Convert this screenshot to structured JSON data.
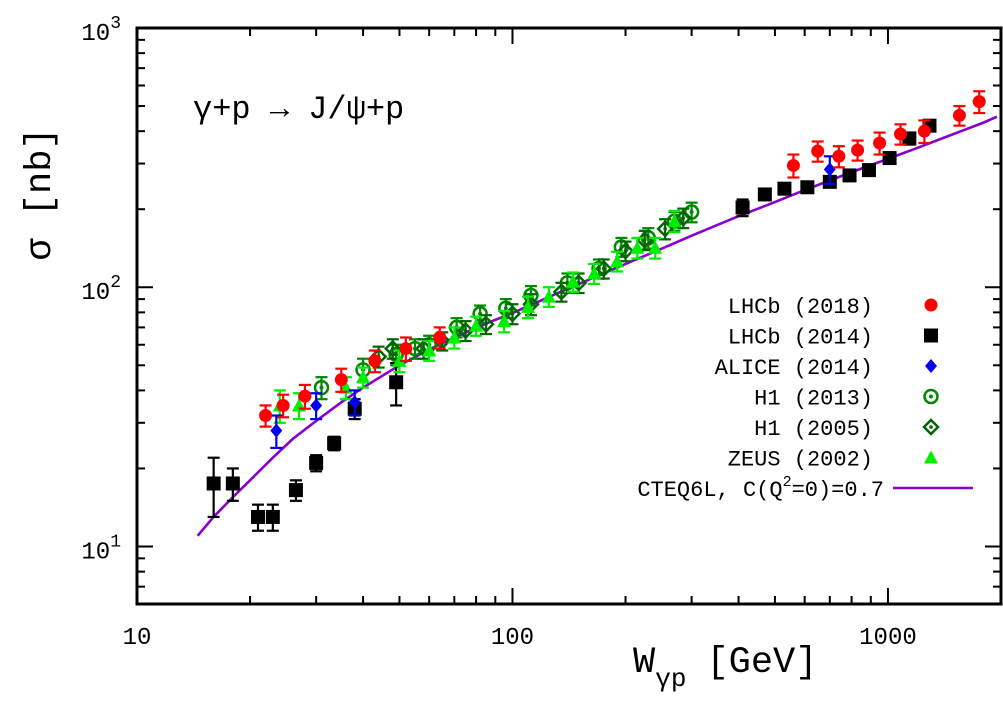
{
  "chart_data": {
    "type": "scatter",
    "title": "",
    "annotation": "γ+p → J/ψ+p",
    "xlabel": {
      "main": "W",
      "sub": "γp",
      "unit": "[GeV]"
    },
    "ylabel": "σ [nb]",
    "xscale": "log",
    "yscale": "log",
    "xlim": [
      10,
      2000
    ],
    "ylim": [
      6,
      1000
    ],
    "x_ticks": [
      {
        "value": 10,
        "label": "10"
      },
      {
        "value": 100,
        "label": "100"
      },
      {
        "value": 1000,
        "label": "1000"
      }
    ],
    "y_ticks": [
      {
        "value": 10,
        "base": "10",
        "exp": "1"
      },
      {
        "value": 100,
        "base": "10",
        "exp": "2"
      },
      {
        "value": 1000,
        "base": "10",
        "exp": "3"
      }
    ],
    "grid": false,
    "legend_position": "bottom-right",
    "series": [
      {
        "name": "LHCb (2018)",
        "marker": "circle",
        "color": "#ff0000",
        "errcolor": "#ff0000",
        "points": [
          [
            22,
            32,
            3
          ],
          [
            24.5,
            35,
            3.5
          ],
          [
            28,
            38,
            4
          ],
          [
            35,
            44,
            4.5
          ],
          [
            43,
            52,
            5
          ],
          [
            52,
            58,
            6
          ],
          [
            64,
            64,
            6
          ],
          [
            560,
            295,
            30
          ],
          [
            650,
            335,
            30
          ],
          [
            740,
            320,
            30
          ],
          [
            830,
            338,
            30
          ],
          [
            950,
            360,
            35
          ],
          [
            1080,
            390,
            35
          ],
          [
            1250,
            400,
            40
          ],
          [
            1550,
            460,
            40
          ],
          [
            1750,
            520,
            50
          ]
        ]
      },
      {
        "name": "LHCb (2014)",
        "marker": "square",
        "color": "#000000",
        "errcolor": "#000000",
        "points": [
          [
            16,
            17.5,
            4.5
          ],
          [
            18,
            17.5,
            2.5
          ],
          [
            21,
            13,
            1.5
          ],
          [
            23,
            13,
            1.5
          ],
          [
            26.5,
            16.5,
            1.5
          ],
          [
            30,
            21,
            1.5
          ],
          [
            33.5,
            25,
            1.5
          ],
          [
            38,
            34,
            3
          ],
          [
            49,
            43,
            8
          ],
          [
            410,
            203,
            15
          ],
          [
            470,
            228,
            10
          ],
          [
            530,
            240,
            10
          ],
          [
            610,
            243,
            10
          ],
          [
            700,
            255,
            10
          ],
          [
            790,
            270,
            10
          ],
          [
            890,
            283,
            12
          ],
          [
            1010,
            315,
            15
          ],
          [
            1140,
            375,
            20
          ],
          [
            1290,
            420,
            20
          ]
        ]
      },
      {
        "name": "ALICE (2014)",
        "marker": "diamond",
        "color": "#0000ee",
        "errcolor": "#0000ee",
        "points": [
          [
            23.5,
            28,
            4
          ],
          [
            30,
            35,
            4
          ],
          [
            38,
            36,
            4
          ],
          [
            700,
            285,
            35
          ]
        ]
      },
      {
        "name": "H1 (2013)",
        "marker": "dotcircle",
        "color": "#008800",
        "errcolor": "#008800",
        "points": [
          [
            31,
            41,
            4
          ],
          [
            40,
            48,
            5
          ],
          [
            49,
            55,
            5
          ],
          [
            55,
            58,
            5
          ],
          [
            60,
            60,
            5
          ],
          [
            71,
            70,
            6
          ],
          [
            82,
            79,
            6
          ],
          [
            96,
            83,
            7
          ],
          [
            112,
            93,
            8
          ],
          [
            140,
            104,
            9
          ],
          [
            170,
            118,
            10
          ],
          [
            195,
            143,
            12
          ],
          [
            230,
            155,
            14
          ],
          [
            270,
            180,
            15
          ],
          [
            300,
            195,
            17
          ]
        ]
      },
      {
        "name": "H1 (2005)",
        "marker": "dotdiamond",
        "color": "#006600",
        "errcolor": "#006600",
        "points": [
          [
            44,
            54,
            5
          ],
          [
            48,
            58,
            5
          ],
          [
            58,
            58,
            5
          ],
          [
            65,
            62,
            5
          ],
          [
            75,
            68,
            6
          ],
          [
            85,
            72,
            6
          ],
          [
            100,
            79,
            7
          ],
          [
            112,
            86,
            8
          ],
          [
            135,
            96,
            8
          ],
          [
            150,
            104,
            9
          ],
          [
            175,
            118,
            10
          ],
          [
            200,
            138,
            12
          ],
          [
            225,
            152,
            13
          ],
          [
            255,
            168,
            15
          ],
          [
            285,
            185,
            16
          ]
        ]
      },
      {
        "name": "ZEUS (2002)",
        "marker": "triangle",
        "color": "#00ee00",
        "errcolor": "#00ee00",
        "points": [
          [
            24,
            35,
            5
          ],
          [
            27,
            35,
            4
          ],
          [
            36,
            41,
            4
          ],
          [
            40,
            45,
            4
          ],
          [
            50,
            52,
            5
          ],
          [
            60,
            57,
            5
          ],
          [
            70,
            64,
            6
          ],
          [
            80,
            71,
            6
          ],
          [
            95,
            74,
            7
          ],
          [
            110,
            84,
            8
          ],
          [
            125,
            92,
            8
          ],
          [
            145,
            105,
            9
          ],
          [
            165,
            113,
            10
          ],
          [
            190,
            126,
            11
          ],
          [
            215,
            142,
            13
          ],
          [
            240,
            142,
            13
          ],
          [
            270,
            180,
            17
          ]
        ]
      }
    ],
    "curve": {
      "name": "CTEQ6L, C(Q²=0)=0.7",
      "legend_text": {
        "pre": "CTEQ6L, C(Q",
        "sup": "2",
        "post": "=0)=0.7"
      },
      "color": "#8800cc",
      "x": [
        14.5,
        16,
        18,
        20,
        23,
        26,
        30,
        35,
        40,
        50,
        60,
        70,
        85,
        100,
        130,
        160,
        200,
        250,
        300,
        400,
        500,
        600,
        700,
        800,
        1000,
        1200,
        1400,
        1600,
        1800,
        1950
      ],
      "y": [
        11,
        13,
        15.5,
        18,
        22,
        26,
        30.5,
        36,
        41,
        50,
        57.5,
        64,
        72.5,
        79.5,
        94,
        107,
        123,
        141,
        158,
        188,
        213,
        237,
        258,
        278,
        313,
        345,
        376,
        405,
        432,
        455
      ]
    }
  }
}
